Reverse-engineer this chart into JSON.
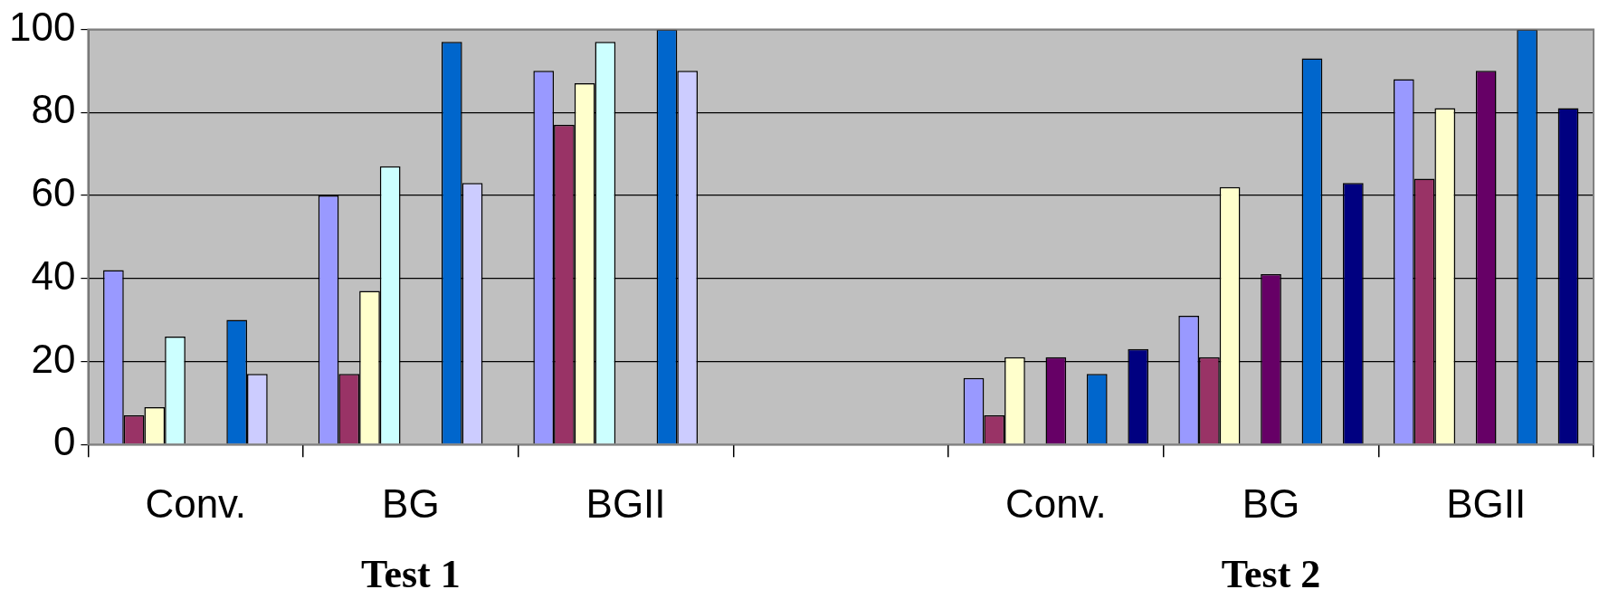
{
  "chart_data": {
    "type": "bar",
    "categories": [
      "Conv.",
      "BG",
      "BGII",
      null,
      "Conv.",
      "BG",
      "BGII"
    ],
    "series": [
      {
        "color": "#9999ff",
        "values": [
          42,
          60,
          90,
          null,
          16,
          31,
          88
        ]
      },
      {
        "color": "#993366",
        "values": [
          7,
          17,
          77,
          null,
          7,
          21,
          64
        ]
      },
      {
        "color": "#ffffcc",
        "values": [
          9,
          37,
          87,
          null,
          21,
          62,
          81
        ]
      },
      {
        "color": "#ccffff",
        "values": [
          26,
          67,
          97,
          null,
          null,
          null,
          null
        ]
      },
      {
        "color": "#660066",
        "values": [
          null,
          null,
          null,
          null,
          21,
          41,
          90
        ]
      },
      {
        "color": "#ff8080",
        "values": [
          null,
          null,
          null,
          null,
          null,
          null,
          null
        ]
      },
      {
        "color": "#0066cc",
        "values": [
          30,
          97,
          100,
          null,
          17,
          93,
          100
        ]
      },
      {
        "color": "#ccccff",
        "values": [
          17,
          63,
          90,
          null,
          null,
          null,
          null
        ]
      },
      {
        "color": "#000080",
        "values": [
          null,
          null,
          null,
          null,
          23,
          63,
          81
        ]
      }
    ],
    "ylim": [
      0,
      100
    ],
    "yticks": [
      0,
      20,
      40,
      60,
      80,
      100
    ],
    "grid": "y",
    "legend": false,
    "annotations": [
      "Test 1",
      "Test 2"
    ]
  }
}
